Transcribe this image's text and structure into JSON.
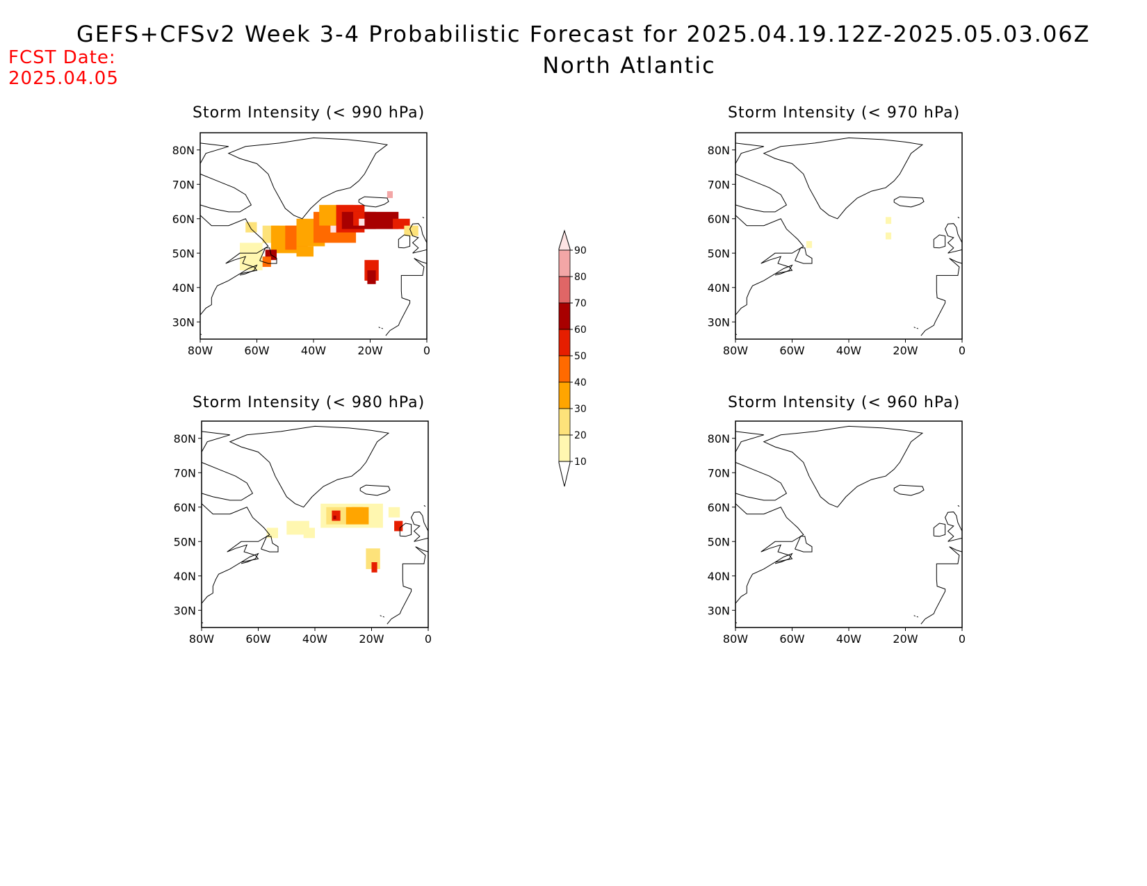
{
  "header": {
    "title": "GEFS+CFSv2 Week 3-4 Probabilistic Forecast for 2025.04.19.12Z-2025.05.03.06Z",
    "region": "North Atlantic",
    "fcst_label": "FCST Date:",
    "fcst_date": "2025.04.05"
  },
  "panels": [
    {
      "id": "p990",
      "title": "Storm Intensity (< 990 hPa)"
    },
    {
      "id": "p970",
      "title": "Storm Intensity (< 970 hPa)"
    },
    {
      "id": "p980",
      "title": "Storm Intensity (< 980 hPa)"
    },
    {
      "id": "p960",
      "title": "Storm Intensity (< 960 hPa)"
    }
  ],
  "axes": {
    "lon_ticks": [
      "80W",
      "60W",
      "40W",
      "20W",
      "0"
    ],
    "lat_ticks": [
      "80N",
      "70N",
      "60N",
      "50N",
      "40N",
      "30N"
    ],
    "lon_range": [
      -80,
      0
    ],
    "lat_range": [
      25,
      85
    ]
  },
  "colorbar": {
    "levels": [
      "10",
      "20",
      "30",
      "40",
      "50",
      "60",
      "70",
      "80",
      "90"
    ],
    "colors": [
      "#fff7b0",
      "#fde27a",
      "#ffa500",
      "#ff6a00",
      "#e61e00",
      "#a80000",
      "#e06666",
      "#f3a6a6",
      "#fde4e4"
    ]
  }
}
